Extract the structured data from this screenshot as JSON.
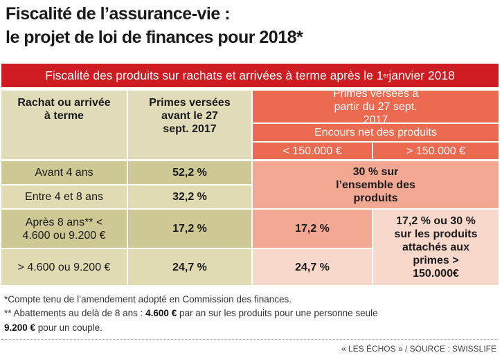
{
  "title": {
    "line1": "Fiscalité de l’assurance-vie :",
    "line2": "le projet de loi de finances pour 2018*"
  },
  "banner": {
    "text": "Fiscalité des produits sur rachats et arrivées à terme après le 1",
    "sup": "er",
    "text_end": " janvier 2018"
  },
  "header": {
    "col1": "Rachat ou arrivée à terme",
    "col2": "Primes versées avant le 27 sept. 2017",
    "col3": "Primes versées à partir du 27 sept. 2017",
    "sub": "Encours net des produits",
    "sub_left": "< 150.000 €",
    "sub_right": "> 150.000 €"
  },
  "rows": [
    {
      "label": "Avant 4 ans",
      "before": "52,2 %"
    },
    {
      "label": "Entre 4 et 8 ans",
      "before": "32,2 %"
    },
    {
      "label": "Après 8 ans** < 4.600 ou 9.200 €",
      "before": "17,2 %",
      "after_low": "17,2 %"
    },
    {
      "label": "> 4.600 ou 9.200 €",
      "before": "24,7 %",
      "after_low": "24,7 %"
    }
  ],
  "merged_30": "30 % sur l’ensemble des produits",
  "merged_high": "17,2 % ou 30 % sur les produits attachés aux primes > 150.000€",
  "footnotes": {
    "note1": "*Compte tenu de l’amendement adopté en Commission des finances.",
    "note2_a": "** Abattements au delà de 8 ans : ",
    "note2_b": "4.600 €",
    "note2_c": " par an sur les produits pour une personne seule",
    "note2_d": "9.200 €",
    "note2_e": " pour un couple."
  },
  "source": "« LES ÉCHOS » / SOURCE : SWISSLIFE",
  "colors": {
    "red": "#cf1b22",
    "salmon": "#ec6a4f",
    "tan_dark": "#cdc894",
    "tan_light": "#e0dbb2",
    "pink": "#f3a893",
    "pink_light": "#f9d8cc"
  }
}
